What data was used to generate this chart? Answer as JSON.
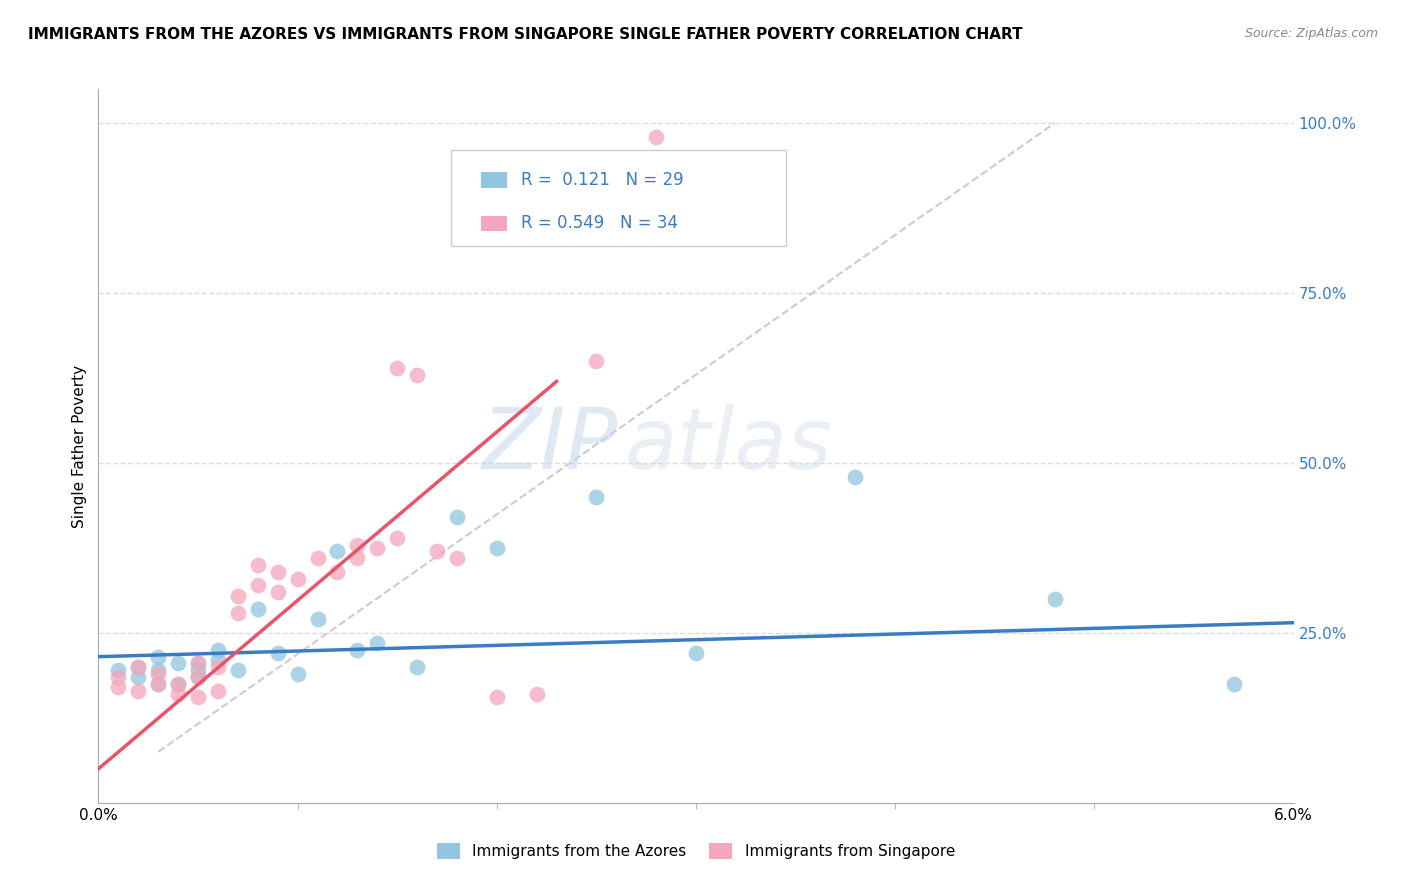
{
  "title": "IMMIGRANTS FROM THE AZORES VS IMMIGRANTS FROM SINGAPORE SINGLE FATHER POVERTY CORRELATION CHART",
  "source": "Source: ZipAtlas.com",
  "ylabel": "Single Father Poverty",
  "legend_label_1": "Immigrants from the Azores",
  "legend_label_2": "Immigrants from Singapore",
  "r1": "0.121",
  "n1": "29",
  "r2": "0.549",
  "n2": "34",
  "color_blue": "#92c5de",
  "color_pink": "#f4a6bb",
  "color_blue_line": "#3a7cc1",
  "color_pink_line": "#e8546a",
  "color_diag_line": "#cccccc",
  "watermark_zip": "ZIP",
  "watermark_atlas": "atlas",
  "xlim": [
    0.0,
    0.06
  ],
  "ylim": [
    0.0,
    1.05
  ],
  "y_tick_values": [
    0.25,
    0.5,
    0.75,
    1.0
  ],
  "y_tick_labels": [
    "25.0%",
    "50.0%",
    "75.0%",
    "100.0%"
  ],
  "azores_x": [
    0.001,
    0.002,
    0.002,
    0.003,
    0.003,
    0.003,
    0.004,
    0.004,
    0.005,
    0.005,
    0.005,
    0.006,
    0.006,
    0.007,
    0.008,
    0.009,
    0.01,
    0.011,
    0.012,
    0.013,
    0.014,
    0.016,
    0.018,
    0.02,
    0.025,
    0.03,
    0.038,
    0.048,
    0.057
  ],
  "azores_y": [
    0.195,
    0.185,
    0.2,
    0.175,
    0.215,
    0.195,
    0.205,
    0.175,
    0.205,
    0.185,
    0.195,
    0.225,
    0.21,
    0.195,
    0.285,
    0.22,
    0.19,
    0.27,
    0.37,
    0.225,
    0.235,
    0.2,
    0.42,
    0.375,
    0.45,
    0.22,
    0.48,
    0.3,
    0.175
  ],
  "singapore_x": [
    0.001,
    0.001,
    0.002,
    0.002,
    0.003,
    0.003,
    0.004,
    0.004,
    0.005,
    0.005,
    0.005,
    0.006,
    0.006,
    0.007,
    0.007,
    0.008,
    0.008,
    0.009,
    0.009,
    0.01,
    0.011,
    0.012,
    0.013,
    0.013,
    0.014,
    0.015,
    0.015,
    0.016,
    0.017,
    0.018,
    0.02,
    0.022,
    0.025,
    0.028
  ],
  "singapore_y": [
    0.17,
    0.185,
    0.165,
    0.2,
    0.175,
    0.19,
    0.16,
    0.175,
    0.155,
    0.185,
    0.205,
    0.165,
    0.2,
    0.28,
    0.305,
    0.32,
    0.35,
    0.31,
    0.34,
    0.33,
    0.36,
    0.34,
    0.36,
    0.38,
    0.375,
    0.39,
    0.64,
    0.63,
    0.37,
    0.36,
    0.155,
    0.16,
    0.65,
    0.98
  ],
  "blue_trend_x": [
    0.0,
    0.06
  ],
  "blue_trend_y": [
    0.215,
    0.265
  ],
  "pink_trend_x": [
    0.0,
    0.023
  ],
  "pink_trend_y": [
    0.05,
    0.62
  ],
  "diag_line_x": [
    0.003,
    0.048
  ],
  "diag_line_y": [
    0.075,
    1.0
  ]
}
